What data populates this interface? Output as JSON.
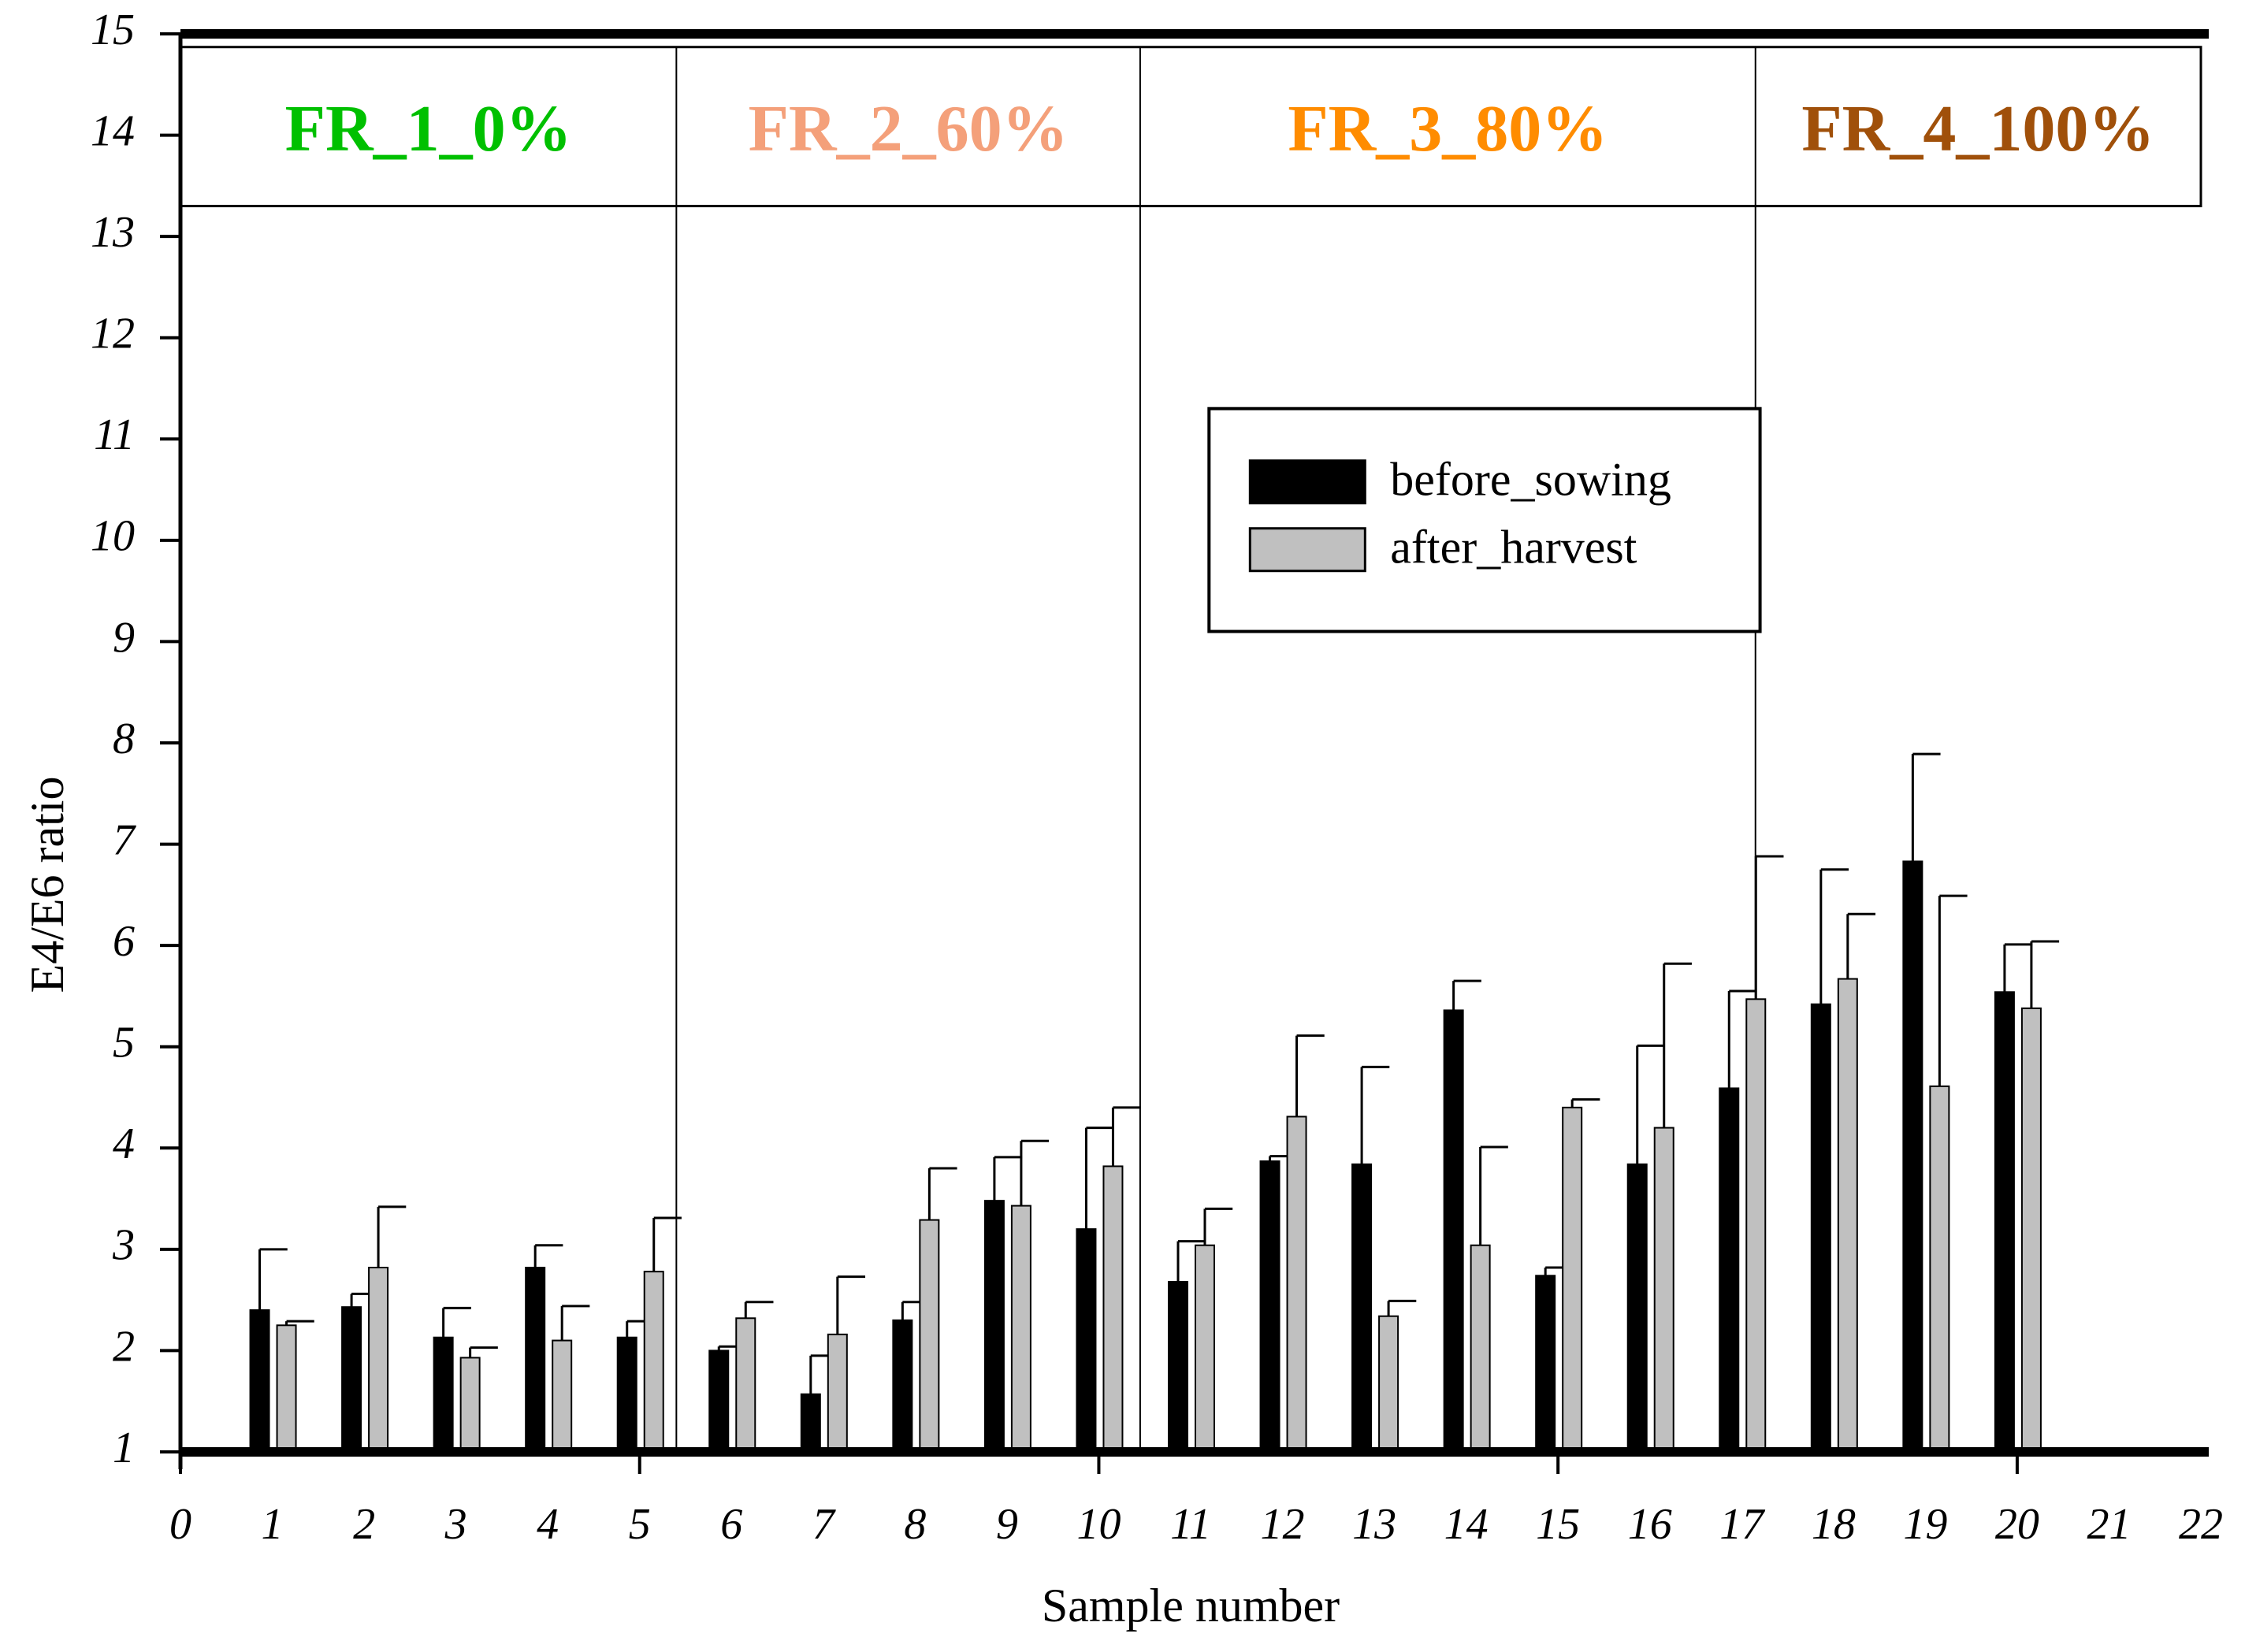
{
  "chart_data": {
    "type": "bar",
    "title": "",
    "xlabel": "Sample number",
    "ylabel": "E4/E6 ratio",
    "xlim": [
      0,
      22
    ],
    "ylim": [
      1,
      15
    ],
    "x_ticks": [
      0,
      1,
      2,
      3,
      4,
      5,
      6,
      7,
      8,
      9,
      10,
      11,
      12,
      13,
      14,
      15,
      16,
      17,
      18,
      19,
      20,
      21,
      22
    ],
    "y_ticks": [
      1,
      2,
      3,
      4,
      5,
      6,
      7,
      8,
      9,
      10,
      11,
      12,
      13,
      14,
      15
    ],
    "grid": false,
    "legend_position": "upper-middle-right",
    "categories": [
      1,
      2,
      3,
      4,
      5,
      6,
      7,
      8,
      9,
      10,
      11,
      12,
      13,
      14,
      15,
      16,
      17,
      18,
      19,
      20
    ],
    "series": [
      {
        "name": "before_sowing",
        "color": "#000000",
        "values": [
          2.4,
          2.43,
          2.13,
          2.82,
          2.13,
          2.0,
          1.57,
          2.3,
          3.48,
          3.2,
          2.68,
          3.87,
          3.84,
          5.36,
          2.74,
          3.84,
          4.59,
          5.42,
          6.83,
          5.54
        ],
        "errors": [
          0.6,
          0.13,
          0.29,
          0.22,
          0.16,
          0.04,
          0.38,
          0.18,
          0.43,
          1.0,
          0.4,
          0.05,
          0.96,
          0.29,
          0.08,
          1.17,
          0.96,
          1.33,
          1.06,
          0.47
        ]
      },
      {
        "name": "after_harvest",
        "color": "#c0c0c0",
        "values": [
          2.25,
          2.82,
          1.93,
          2.1,
          2.78,
          2.32,
          2.16,
          3.29,
          3.43,
          3.82,
          3.04,
          4.31,
          2.34,
          3.04,
          4.4,
          4.2,
          5.47,
          5.67,
          4.61,
          5.38
        ],
        "errors": [
          0.04,
          0.6,
          0.1,
          0.34,
          0.53,
          0.16,
          0.57,
          0.51,
          0.64,
          0.58,
          0.36,
          0.8,
          0.15,
          0.97,
          0.08,
          1.62,
          1.41,
          0.64,
          1.88,
          0.66
        ]
      }
    ],
    "groups": [
      {
        "label": "FR_1_0%",
        "color": "#00c000",
        "x_start": 0,
        "x_end": 5.4
      },
      {
        "label": "FR_2_60%",
        "color": "#f4a07a",
        "x_start": 5.4,
        "x_end": 10.45
      },
      {
        "label": "FR_3_80%",
        "color": "#ff8c00",
        "x_start": 10.45,
        "x_end": 17.15
      },
      {
        "label": "FR_4_100%",
        "color": "#a0500a",
        "x_start": 17.15,
        "x_end": 22
      }
    ]
  }
}
